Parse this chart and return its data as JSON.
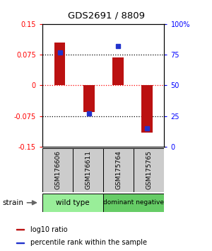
{
  "title": "GDS2691 / 8809",
  "samples": [
    "GSM176606",
    "GSM176611",
    "GSM175764",
    "GSM175765"
  ],
  "log10_ratio": [
    0.105,
    -0.065,
    0.068,
    -0.115
  ],
  "percentile_rank": [
    77,
    27,
    82,
    15
  ],
  "groups": [
    {
      "label": "wild type",
      "color": "#99ee99",
      "samples": [
        0,
        1
      ]
    },
    {
      "label": "dominant negative",
      "color": "#66cc66",
      "samples": [
        2,
        3
      ]
    }
  ],
  "bar_color": "#bb1111",
  "dot_color": "#2233cc",
  "ylim_left": [
    -0.15,
    0.15
  ],
  "ylim_right": [
    0,
    100
  ],
  "yticks_left": [
    -0.15,
    -0.075,
    0,
    0.075,
    0.15
  ],
  "yticks_right": [
    0,
    25,
    50,
    75,
    100
  ],
  "ytick_labels_left": [
    "-0.15",
    "-0.075",
    "0",
    "0.075",
    "0.15"
  ],
  "ytick_labels_right": [
    "0",
    "25",
    "50",
    "75",
    "100%"
  ],
  "background_color": "#ffffff",
  "strain_label": "strain",
  "sample_box_color": "#cccccc",
  "legend_items": [
    {
      "color": "#bb1111",
      "label": "log10 ratio"
    },
    {
      "color": "#2233cc",
      "label": "percentile rank within the sample"
    }
  ]
}
